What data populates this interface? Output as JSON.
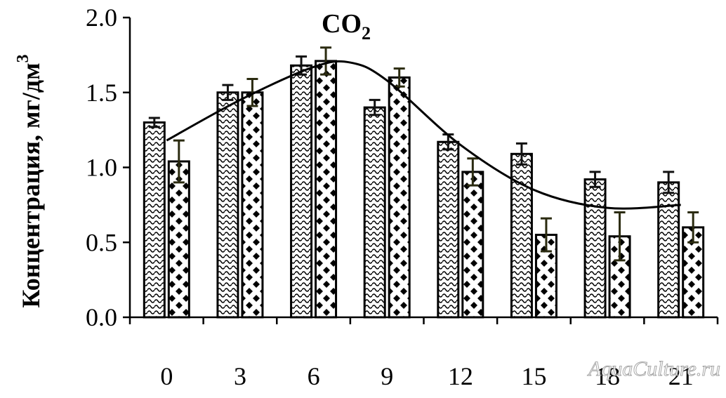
{
  "chart_data": {
    "type": "bar",
    "title": "CO",
    "title_subscript": "2",
    "ylabel": "Концентрация, мг/дм",
    "ylabel_superscript": "3",
    "xlabel": "",
    "categories": [
      "0",
      "3",
      "6",
      "9",
      "12",
      "15",
      "18",
      "21"
    ],
    "ylim": [
      0,
      2.0
    ],
    "yticks": [
      "0.0",
      "0.5",
      "1.0",
      "1.5",
      "2.0"
    ],
    "grid": false,
    "legend": "none",
    "series": [
      {
        "pattern": "wave",
        "values": [
          1.3,
          1.5,
          1.68,
          1.4,
          1.17,
          1.09,
          0.92,
          0.9
        ],
        "errors": [
          0.03,
          0.05,
          0.06,
          0.05,
          0.05,
          0.07,
          0.05,
          0.07
        ]
      },
      {
        "pattern": "dots",
        "values": [
          1.04,
          1.5,
          1.71,
          1.6,
          0.97,
          0.55,
          0.54,
          0.6
        ],
        "errors": [
          0.14,
          0.09,
          0.09,
          0.06,
          0.09,
          0.11,
          0.16,
          0.1
        ]
      }
    ],
    "trend_line": {
      "x_index": [
        0,
        1,
        2,
        2.5,
        3,
        4,
        5,
        6,
        7
      ],
      "values": [
        1.18,
        1.45,
        1.67,
        1.7,
        1.58,
        1.15,
        0.85,
        0.73,
        0.75
      ]
    },
    "colors": {
      "bar_stroke": "#000000",
      "error_series1": "#111111",
      "error_series2": "#2b2b10",
      "trend": "#000000"
    }
  },
  "watermark": "AquaCulture.ru"
}
